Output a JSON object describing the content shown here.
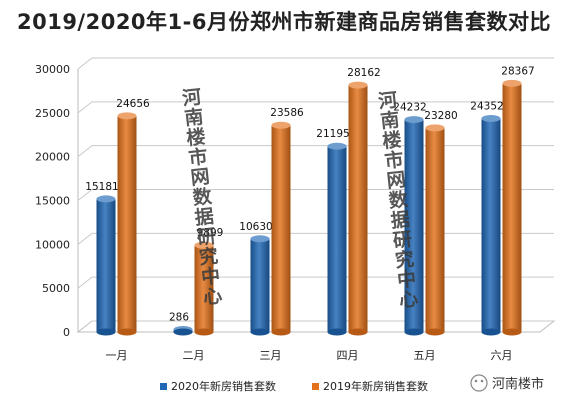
{
  "chart_data": {
    "type": "bar",
    "title": "2019/2020年1-6月份郑州市新建商品房销售套数对比",
    "categories": [
      "一月",
      "二月",
      "三月",
      "四月",
      "五月",
      "六月"
    ],
    "series": [
      {
        "name": "2020年新房销售套数",
        "color": "#1f67b5",
        "values": [
          15181,
          286,
          10630,
          21195,
          24232,
          24352
        ]
      },
      {
        "name": "2019年新房销售套数",
        "color": "#e3711b",
        "values": [
          24656,
          9899,
          23586,
          28162,
          23280,
          28367
        ]
      }
    ],
    "y_ticks": [
      "0",
      "5000",
      "10000",
      "15000",
      "20000",
      "25000",
      "30000"
    ],
    "ylim": [
      0,
      30000
    ],
    "xlabel": "",
    "ylabel": "",
    "grid": true,
    "legend_position": "bottom"
  },
  "watermark": "河南楼市网数据研究中心",
  "brand": "河南楼市"
}
